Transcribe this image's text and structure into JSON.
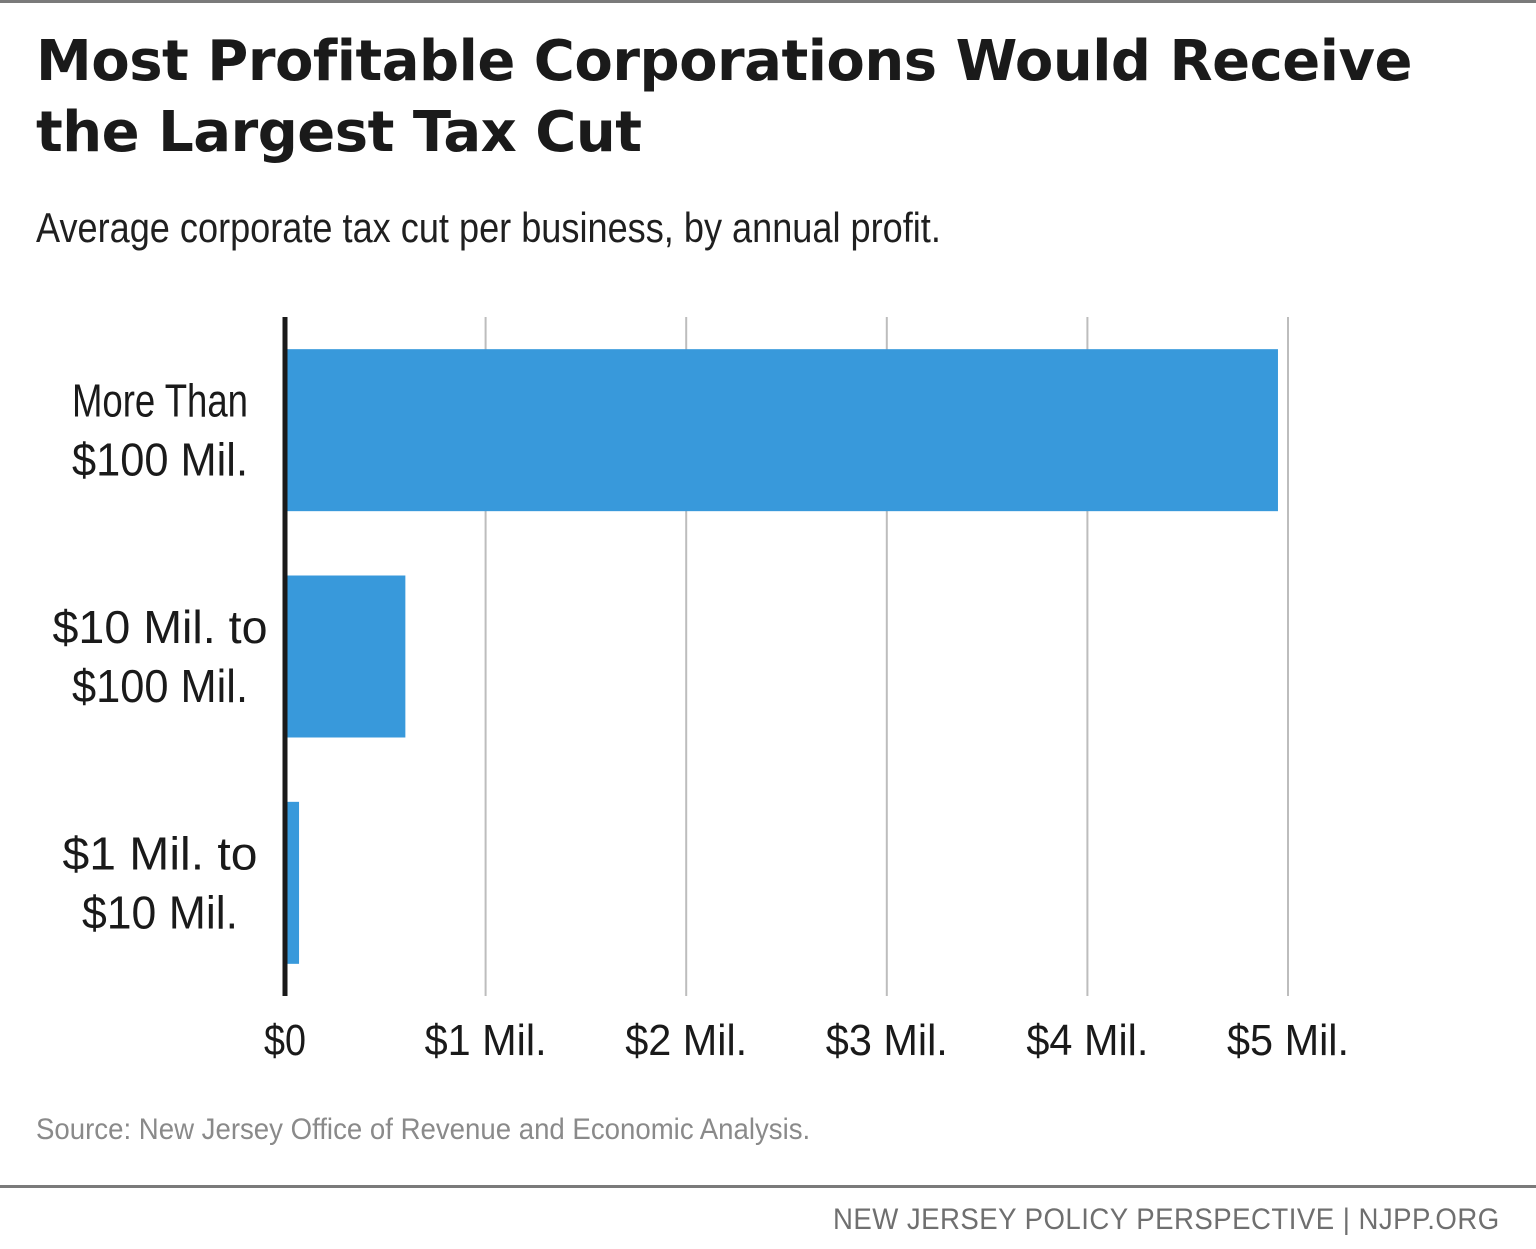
{
  "chart_data": {
    "type": "bar",
    "orientation": "horizontal",
    "title": "Most Profitable Corporations Would Receive the Largest Tax Cut",
    "subtitle": "Average corporate tax cut per business, by annual profit.",
    "categories": [
      [
        "More Than",
        "$100 Mil."
      ],
      [
        "$10 Mil. to",
        "$100 Mil."
      ],
      [
        "$1 Mil. to",
        "$10 Mil."
      ]
    ],
    "values": [
      4.95,
      0.6,
      0.07
    ],
    "unit": "million dollars",
    "xlim": [
      0,
      5
    ],
    "ticks": [
      0,
      1,
      2,
      3,
      4,
      5
    ],
    "tick_labels": [
      "$0",
      "$1 Mil.",
      "$2 Mil.",
      "$3 Mil.",
      "$4 Mil.",
      "$5 Mil."
    ],
    "xlabel": "",
    "ylabel": "",
    "grid": true,
    "bar_color": "#3899db",
    "gridline_color": "#bdbdbd",
    "axis_color": "#1a1a1a"
  },
  "source": "Source: New Jersey Office of Revenue and Economic Analysis.",
  "footer": "NEW JERSEY POLICY PERSPECTIVE | NJPP.ORG"
}
